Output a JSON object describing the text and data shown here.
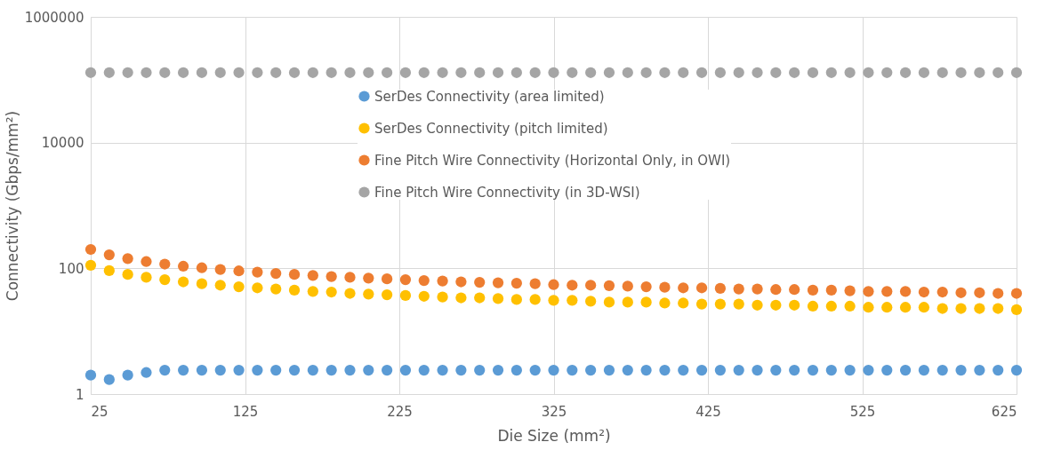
{
  "chart_data": {
    "type": "scatter",
    "xlabel": "Die Size (mm²)",
    "ylabel": "Connectivity (Gbps/mm²)",
    "x": [
      25,
      37,
      49,
      61,
      73,
      85,
      97,
      109,
      121,
      133,
      145,
      157,
      169,
      181,
      193,
      205,
      217,
      229,
      241,
      253,
      265,
      277,
      289,
      301,
      313,
      325,
      337,
      349,
      361,
      373,
      385,
      397,
      409,
      421,
      433,
      445,
      457,
      469,
      481,
      493,
      505,
      517,
      529,
      541,
      553,
      565,
      577,
      589,
      601,
      613,
      625
    ],
    "series": [
      {
        "name": "SerDes Connectivity  (area limited)",
        "color": "#5b9bd5",
        "values": [
          2.0,
          1.7,
          2.0,
          2.2,
          2.4,
          2.4,
          2.4,
          2.4,
          2.4,
          2.4,
          2.4,
          2.4,
          2.4,
          2.4,
          2.4,
          2.4,
          2.4,
          2.4,
          2.4,
          2.4,
          2.4,
          2.4,
          2.4,
          2.4,
          2.4,
          2.4,
          2.4,
          2.4,
          2.4,
          2.4,
          2.4,
          2.4,
          2.4,
          2.4,
          2.4,
          2.4,
          2.4,
          2.4,
          2.4,
          2.4,
          2.4,
          2.4,
          2.4,
          2.4,
          2.4,
          2.4,
          2.4,
          2.4,
          2.4,
          2.4,
          2.4
        ]
      },
      {
        "name": "SerDes Connectivity (pitch limited)",
        "color": "#ffc000",
        "values": [
          112,
          92,
          80,
          72,
          66,
          61,
          57,
          54,
          51,
          49,
          47,
          45,
          43,
          42,
          40,
          39,
          38,
          37,
          36,
          35,
          34,
          34,
          33,
          32,
          32,
          31,
          31,
          30,
          29,
          29,
          29,
          28,
          28,
          27,
          27,
          27,
          26,
          26,
          26,
          25,
          25,
          25,
          24,
          24,
          24,
          24,
          23,
          23,
          23,
          23,
          22
        ]
      },
      {
        "name": "Fine Pitch Wire Connectivity (Horizontal Only, in OWI)",
        "color": "#ed7d31",
        "values": [
          200,
          164,
          143,
          128,
          117,
          108,
          102,
          96,
          91,
          87,
          83,
          80,
          77,
          74,
          72,
          70,
          68,
          66,
          64,
          63,
          61,
          60,
          59,
          58,
          57,
          55,
          54,
          54,
          53,
          52,
          51,
          50,
          49,
          49,
          48,
          47,
          47,
          46,
          46,
          45,
          45,
          44,
          43,
          43,
          43,
          42,
          42,
          41,
          41,
          40,
          40
        ]
      },
      {
        "name": "Fine Pitch Wire Connectivity (in 3D-WSI)",
        "color": "#a5a5a5",
        "values": [
          130000,
          130000,
          130000,
          130000,
          130000,
          130000,
          130000,
          130000,
          130000,
          130000,
          130000,
          130000,
          130000,
          130000,
          130000,
          130000,
          130000,
          130000,
          130000,
          130000,
          130000,
          130000,
          130000,
          130000,
          130000,
          130000,
          130000,
          130000,
          130000,
          130000,
          130000,
          130000,
          130000,
          130000,
          130000,
          130000,
          130000,
          130000,
          130000,
          130000,
          130000,
          130000,
          130000,
          130000,
          130000,
          130000,
          130000,
          130000,
          130000,
          130000,
          130000
        ]
      }
    ],
    "xlim": [
      25,
      625
    ],
    "xticks": [
      25,
      125,
      225,
      325,
      425,
      525,
      625
    ],
    "ylim": [
      1,
      1000000
    ],
    "yticks": [
      1,
      100,
      10000,
      1000000
    ],
    "log": "y",
    "grid": true,
    "legend": "top",
    "marker": "circle"
  }
}
